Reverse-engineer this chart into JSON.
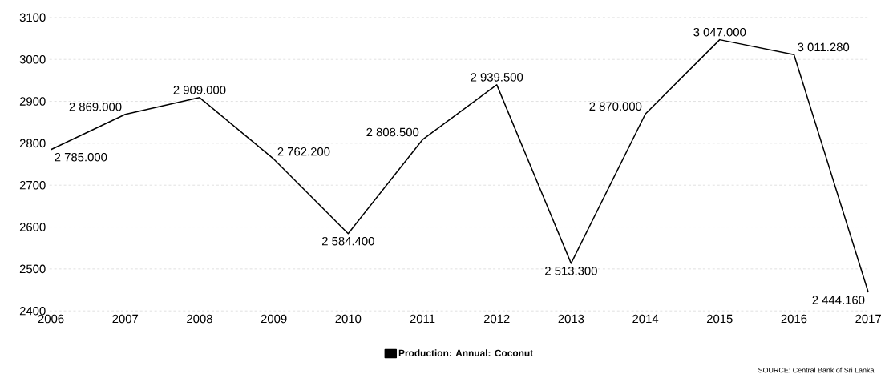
{
  "chart_data": {
    "type": "line",
    "categories": [
      "2006",
      "2007",
      "2008",
      "2009",
      "2010",
      "2011",
      "2012",
      "2013",
      "2014",
      "2015",
      "2016",
      "2017"
    ],
    "series": [
      {
        "name": "Production: Annual: Coconut",
        "color": "#000000",
        "values": [
          2785,
          2869,
          2909,
          2762.2,
          2584.4,
          2808.5,
          2939.5,
          2513.3,
          2870,
          3047,
          3011.28,
          2444.16
        ],
        "value_labels": [
          "2 785.000",
          "2 869.000",
          "2 909.000",
          "2 762.200",
          "2 584.400",
          "2 808.500",
          "2 939.500",
          "2 513.300",
          "2 870.000",
          "3 047.000",
          "3 011.280",
          "2 444.160"
        ]
      }
    ],
    "ylim": [
      2400,
      3100
    ],
    "yticks": [
      2400,
      2500,
      2600,
      2700,
      2800,
      2900,
      3000,
      3100
    ],
    "grid": "y",
    "legend": "bottom",
    "marker": "none",
    "line_style": "solid",
    "annotations": [
      "SOURCE: Central Bank of Sri Lanka"
    ]
  }
}
